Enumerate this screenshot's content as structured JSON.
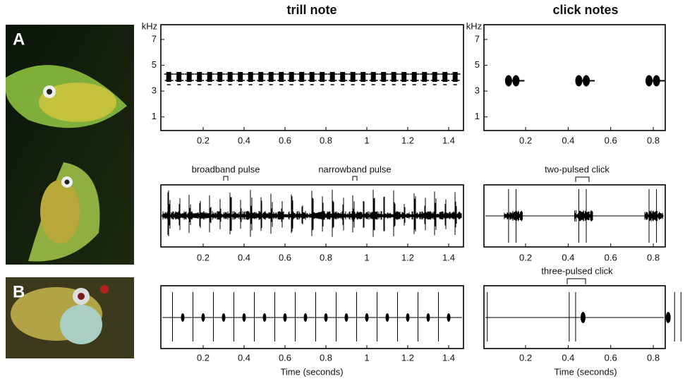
{
  "titles": [
    "trill note",
    "click notes"
  ],
  "panel_labels": [
    "A",
    "B"
  ],
  "spectrogram": {
    "unit": "kHz",
    "yticks": [
      1,
      3,
      5,
      7
    ]
  },
  "xticks": {
    "trill": [
      0.2,
      0.4,
      0.6,
      0.8,
      1.0,
      1.2,
      1.4
    ],
    "click": [
      0.2,
      0.4,
      0.6,
      0.8
    ]
  },
  "annotations": [
    "broadband pulse",
    "narrowband pulse",
    "two-pulsed click",
    "three-pulsed click"
  ],
  "x_label": "Time (seconds)"
}
